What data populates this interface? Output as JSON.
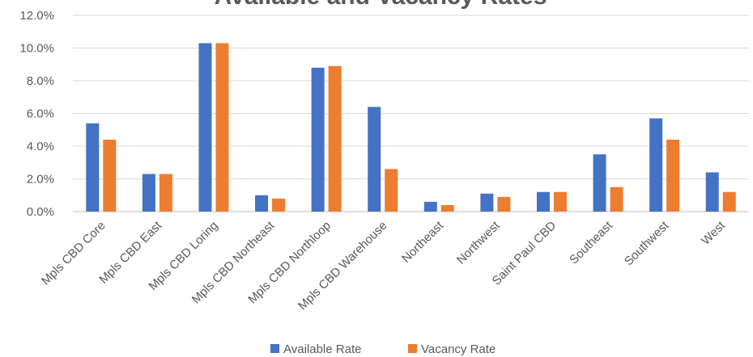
{
  "chart_data": {
    "type": "bar",
    "title": "Available and Vacancy Rates",
    "xlabel": "",
    "ylabel": "",
    "ylim": [
      0,
      12
    ],
    "yticks": [
      "0.0%",
      "2.0%",
      "4.0%",
      "6.0%",
      "8.0%",
      "10.0%",
      "12.0%"
    ],
    "grid": true,
    "legend": "bottom",
    "categories": [
      "Mpls CBD Core",
      "Mpls CBD East",
      "Mpls CBD Loring",
      "Mpls CBD Northeast",
      "Mpls CBD Northloop",
      "Mpls CBD Warehouse",
      "Northeast",
      "Northwest",
      "Saint Paul CBD",
      "Southeast",
      "Southwest",
      "West"
    ],
    "series": [
      {
        "name": "Available Rate",
        "color": "#4472C4",
        "values": [
          5.4,
          2.3,
          10.3,
          1.0,
          8.8,
          6.4,
          0.6,
          1.1,
          1.2,
          3.5,
          5.7,
          2.4
        ]
      },
      {
        "name": "Vacancy Rate",
        "color": "#ED7D31",
        "values": [
          4.4,
          2.3,
          10.3,
          0.8,
          8.9,
          2.6,
          0.4,
          0.9,
          1.2,
          1.5,
          4.4,
          1.2
        ]
      }
    ]
  }
}
